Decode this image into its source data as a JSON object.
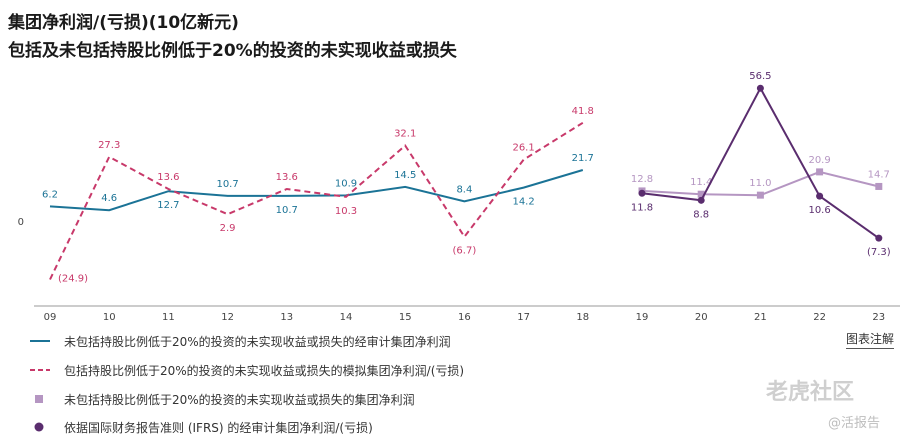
{
  "header": {
    "title": "集团净利润/(亏损)(10亿新元)",
    "subtitle": "包括及未包括持股比例低于20%的投资的未实现收益或损失"
  },
  "chart_data": {
    "type": "line",
    "categories": [
      "09",
      "10",
      "11",
      "12",
      "13",
      "14",
      "15",
      "16",
      "17",
      "18",
      "19",
      "20",
      "21",
      "22",
      "23"
    ],
    "zero_label": "0",
    "series": [
      {
        "name": "未包括持股比例低于20%的投资的未实现收益或损失的经审计集团净利润",
        "color": "#1b7396",
        "style": "solid",
        "values": [
          6.2,
          4.6,
          12.7,
          10.7,
          10.7,
          10.9,
          14.5,
          8.4,
          14.2,
          21.7,
          null,
          null,
          null,
          null,
          null
        ],
        "labels": [
          "6.2",
          "4.6",
          "12.7",
          "10.7",
          "10.7",
          "10.9",
          "14.5",
          "8.4",
          "14.2",
          "21.7",
          null,
          null,
          null,
          null,
          null
        ],
        "label_pos": [
          "above",
          "above",
          "below",
          "above",
          "below",
          "above",
          "above",
          "above",
          "below",
          "above",
          null,
          null,
          null,
          null,
          null
        ]
      },
      {
        "name": "包括持股比例低于20%的投资的未实现收益或损失的模拟集团净利润/(亏损)",
        "color": "#c8396a",
        "style": "dashed",
        "values": [
          -24.9,
          27.3,
          13.6,
          2.9,
          13.6,
          10.3,
          32.1,
          -6.7,
          26.1,
          41.8,
          null,
          null,
          null,
          null,
          null
        ],
        "labels": [
          "(24.9)",
          "27.3",
          "13.6",
          "2.9",
          "13.6",
          "10.3",
          "32.1",
          "(6.7)",
          "26.1",
          "41.8",
          null,
          null,
          null,
          null,
          null
        ],
        "label_pos": [
          "right",
          "above",
          "above",
          "below",
          "above",
          "below",
          "above",
          "below",
          "above",
          "above",
          null,
          null,
          null,
          null,
          null
        ]
      },
      {
        "name": "未包括持股比例低于20%的投资的未实现收益或损失的集团净利润",
        "color": "#b596c2",
        "style": "solid-square",
        "values": [
          null,
          null,
          null,
          null,
          null,
          null,
          null,
          null,
          null,
          null,
          12.8,
          11.4,
          11.0,
          20.9,
          14.7
        ],
        "labels": [
          null,
          null,
          null,
          null,
          null,
          null,
          null,
          null,
          null,
          null,
          "12.8",
          "11.4",
          "11.0",
          "20.9",
          "14.7"
        ],
        "label_pos": [
          null,
          null,
          null,
          null,
          null,
          null,
          null,
          null,
          null,
          null,
          "above",
          "above",
          "above",
          "above",
          "above"
        ]
      },
      {
        "name": "依据国际财务报告准则 (IFRS) 的经审计集团净利润/(亏损)",
        "color": "#5a2d6e",
        "style": "solid-circle",
        "values": [
          null,
          null,
          null,
          null,
          null,
          null,
          null,
          null,
          null,
          null,
          11.8,
          8.8,
          56.5,
          10.6,
          -7.3
        ],
        "labels": [
          null,
          null,
          null,
          null,
          null,
          null,
          null,
          null,
          null,
          null,
          "11.8",
          "8.8",
          "56.5",
          "10.6",
          "(7.3)"
        ],
        "label_pos": [
          null,
          null,
          null,
          null,
          null,
          null,
          null,
          null,
          null,
          null,
          "below",
          "below",
          "above",
          "below",
          "below"
        ]
      }
    ]
  },
  "footer": {
    "note_link": "图表注解",
    "watermark_main": "老虎社区",
    "watermark_sub": "@活报告"
  }
}
